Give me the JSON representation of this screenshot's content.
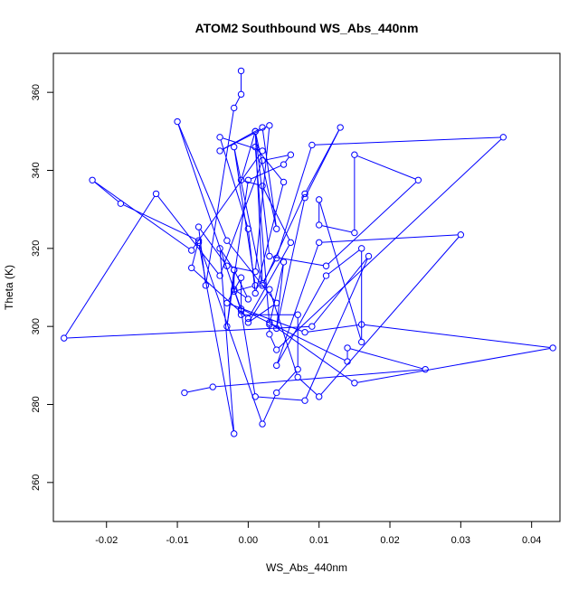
{
  "chart_data": {
    "type": "line",
    "title": "ATOM2 Southbound WS_Abs_440nm",
    "xlabel": "WS_Abs_440nm",
    "ylabel": "Theta (K)",
    "xlim": [
      -0.0275,
      0.044
    ],
    "ylim": [
      250,
      370
    ],
    "xticks": [
      -0.02,
      -0.01,
      0.0,
      0.01,
      0.02,
      0.03,
      0.04
    ],
    "xtick_labels": [
      "-0.02",
      "-0.01",
      "0.00",
      "0.01",
      "0.02",
      "0.03",
      "0.04"
    ],
    "yticks": [
      260,
      280,
      300,
      320,
      340,
      360
    ],
    "ytick_labels": [
      "260",
      "280",
      "300",
      "320",
      "340",
      "360"
    ],
    "grid": false,
    "marker": "open-circle",
    "color": "#0000ff",
    "series": [
      {
        "x": [
          -0.001,
          -0.001,
          -0.002,
          -0.006,
          -0.007,
          -0.003,
          0.001,
          0.003,
          -0.004,
          0.002,
          0.004,
          0.001,
          -0.001,
          0.002,
          0.006,
          0.0,
          -0.008,
          -0.007,
          -0.018,
          -0.022,
          -0.008,
          0.002,
          -0.004,
          0.0,
          0.001,
          0.005,
          0.001,
          0.003,
          0.005,
          0.004,
          0.008,
          0.013,
          0.008,
          0.002,
          -0.002,
          0.001,
          -0.002,
          -0.002,
          -0.003,
          0.0,
          0.005,
          0.006,
          0.002,
          -0.004,
          -0.013,
          -0.026,
          0.009,
          0.017,
          0.008,
          0.001,
          -0.001,
          -0.01,
          -0.003,
          0.004,
          0.0,
          0.003,
          0.007,
          0.01,
          0.03,
          0.01,
          0.004,
          0.011,
          0.016,
          0.016,
          0.01,
          0.01,
          0.015,
          0.015,
          0.024,
          0.011,
          0.003,
          0.001,
          0.002,
          0.004,
          0.009,
          0.036,
          0.004,
          0.003,
          0.003,
          0.015,
          0.043,
          0.016,
          0.008,
          -0.003,
          -0.001,
          -0.001,
          0.007,
          0.007,
          0.004,
          0.002,
          -0.007,
          -0.002,
          -0.004,
          -0.002,
          0.0,
          -0.002,
          -0.001,
          0.014,
          0.014,
          0.025,
          -0.005,
          -0.009
        ],
        "y": [
          365.5,
          359.5,
          356.0,
          310.5,
          325.5,
          315.5,
          314.0,
          351.5,
          345.0,
          351.0,
          325.0,
          350.0,
          337.5,
          336.0,
          321.5,
          302.0,
          315.0,
          322.0,
          331.5,
          337.5,
          319.5,
          345.0,
          348.5,
          325.0,
          308.5,
          337.0,
          346.0,
          300.5,
          316.5,
          299.5,
          333.0,
          351.0,
          334.0,
          310.5,
          346.0,
          310.5,
          309.0,
          314.5,
          300.0,
          337.5,
          341.5,
          344.0,
          342.5,
          313.0,
          334.0,
          297.0,
          300.0,
          318.0,
          281.0,
          282.0,
          304.0,
          352.5,
          322.0,
          306.0,
          301.0,
          309.5,
          287.0,
          282.0,
          323.5,
          321.5,
          290.0,
          313.0,
          320.0,
          296.0,
          332.5,
          326.0,
          324.0,
          344.0,
          337.5,
          315.5,
          318.0,
          350.0,
          311.0,
          317.5,
          346.5,
          348.5,
          294.0,
          298.0,
          301.0,
          285.5,
          294.5,
          300.5,
          298.5,
          306.0,
          312.5,
          303.0,
          303.0,
          289.0,
          283.0,
          275.0,
          321.5,
          272.5,
          320.0,
          314.5,
          307.0,
          309.5,
          304.5,
          291.0,
          294.5,
          289.0,
          284.5,
          283.0
        ]
      }
    ]
  }
}
